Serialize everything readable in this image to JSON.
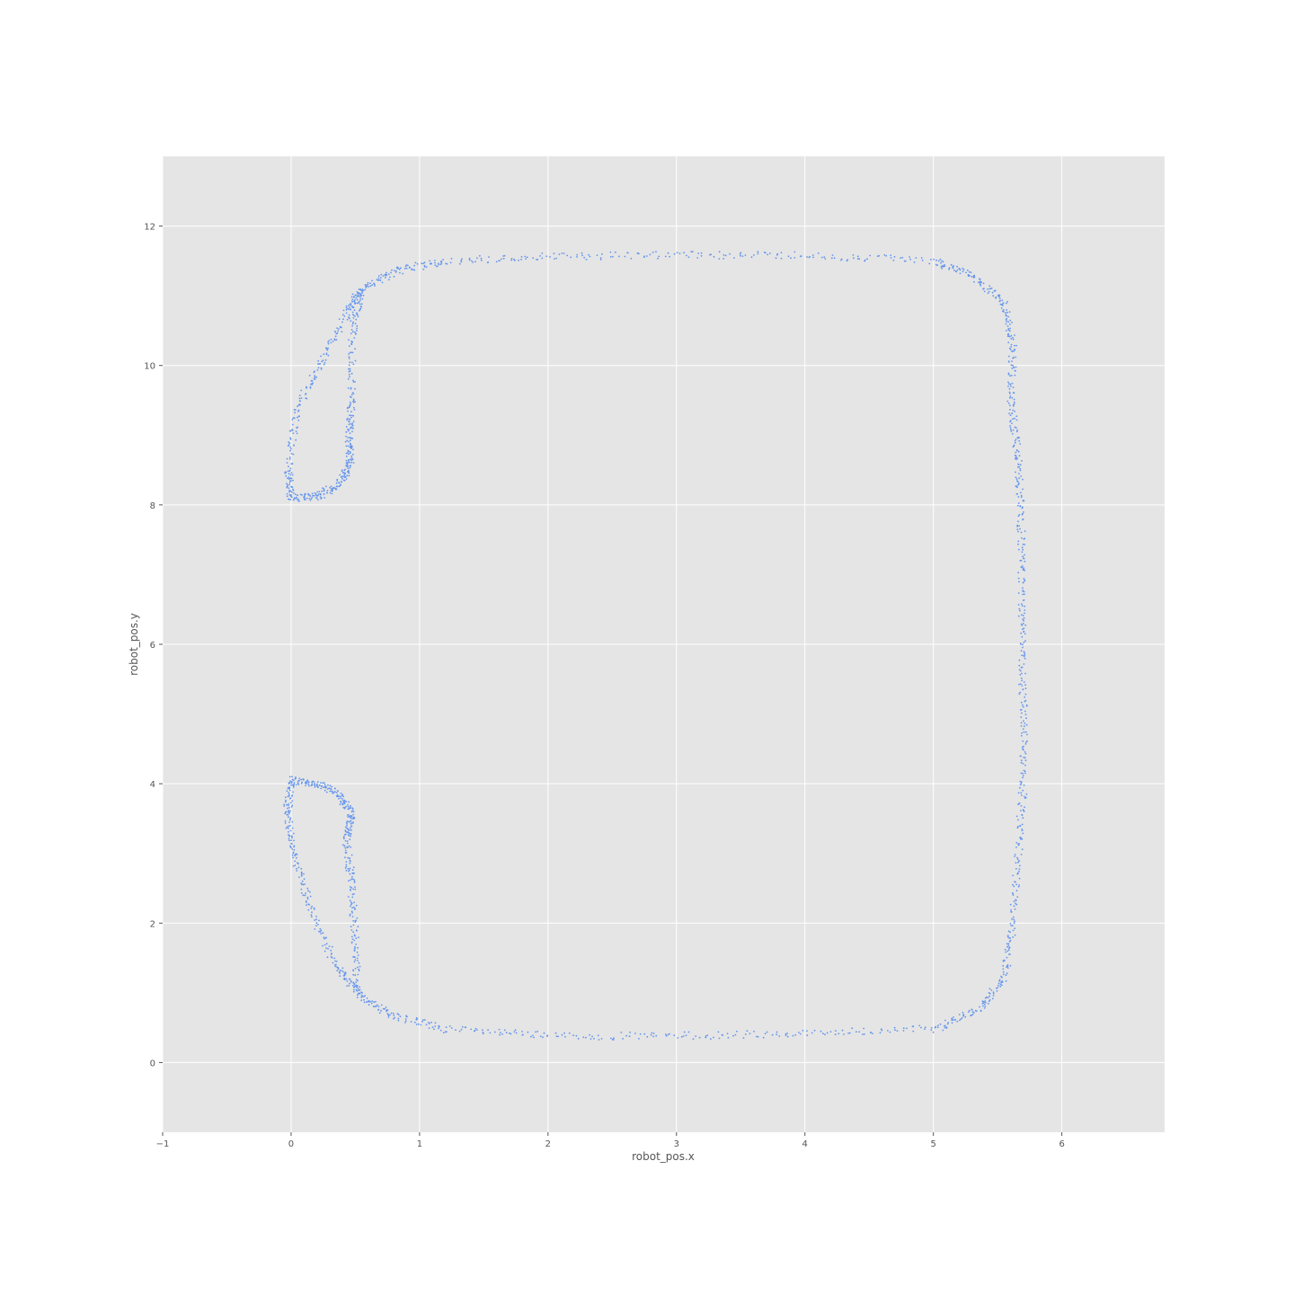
{
  "chart_data": {
    "type": "scatter",
    "title": "",
    "xlabel": "robot_pos.x",
    "ylabel": "robot_pos.y",
    "xlim": [
      -1,
      6.8
    ],
    "ylim": [
      -1,
      13
    ],
    "xticks": [
      -1,
      0,
      1,
      2,
      3,
      4,
      5,
      6
    ],
    "yticks": [
      0,
      2,
      4,
      6,
      8,
      10,
      12
    ],
    "xtick_labels": [
      "−1",
      "0",
      "1",
      "2",
      "3",
      "4",
      "5",
      "6"
    ],
    "ytick_labels": [
      "0",
      "2",
      "4",
      "6",
      "8",
      "10",
      "12"
    ],
    "grid": true,
    "colors": {
      "background": "#e5e5e5",
      "points": "#6495ed",
      "grid": "#ffffff",
      "text": "#555555"
    },
    "series": [
      {
        "trajectory_waypoints": [
          [
            0.0,
            4.05
          ],
          [
            0.2,
            4.0
          ],
          [
            0.38,
            3.85
          ],
          [
            0.47,
            3.55
          ],
          [
            0.43,
            3.2
          ],
          [
            0.47,
            2.6
          ],
          [
            0.5,
            1.8
          ],
          [
            0.52,
            1.0
          ],
          [
            0.75,
            0.7
          ],
          [
            1.2,
            0.48
          ],
          [
            2.0,
            0.38
          ],
          [
            3.0,
            0.38
          ],
          [
            4.0,
            0.42
          ],
          [
            5.0,
            0.48
          ],
          [
            5.35,
            0.75
          ],
          [
            5.55,
            1.2
          ],
          [
            5.62,
            2.0
          ],
          [
            5.66,
            3.0
          ],
          [
            5.7,
            4.0
          ],
          [
            5.7,
            5.0
          ],
          [
            5.69,
            6.0
          ],
          [
            5.69,
            7.0
          ],
          [
            5.68,
            8.0
          ],
          [
            5.65,
            8.8
          ],
          [
            5.6,
            9.5
          ],
          [
            5.62,
            10.3
          ],
          [
            5.55,
            10.9
          ],
          [
            5.3,
            11.3
          ],
          [
            5.0,
            11.5
          ],
          [
            4.0,
            11.58
          ],
          [
            3.0,
            11.58
          ],
          [
            2.0,
            11.57
          ],
          [
            1.2,
            11.5
          ],
          [
            0.8,
            11.35
          ],
          [
            0.55,
            11.1
          ],
          [
            0.48,
            10.5
          ],
          [
            0.47,
            9.5
          ],
          [
            0.45,
            9.0
          ],
          [
            0.46,
            8.6
          ],
          [
            0.38,
            8.3
          ],
          [
            0.2,
            8.12
          ],
          [
            0.0,
            8.1
          ],
          [
            -0.02,
            8.5
          ],
          [
            0.05,
            9.4
          ],
          [
            0.25,
            10.1
          ],
          [
            0.45,
            10.8
          ],
          [
            0.55,
            11.1
          ]
        ],
        "lower_return_waypoints": [
          [
            0.52,
            1.0
          ],
          [
            0.35,
            1.4
          ],
          [
            0.15,
            2.2
          ],
          [
            0.02,
            3.0
          ],
          [
            -0.03,
            3.6
          ],
          [
            0.0,
            4.05
          ]
        ]
      }
    ]
  }
}
